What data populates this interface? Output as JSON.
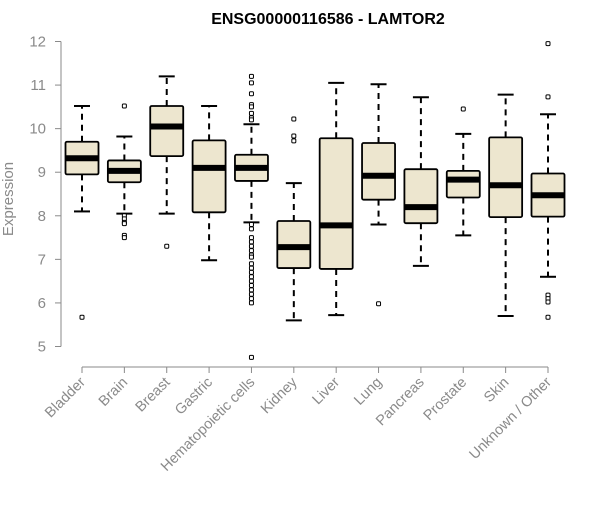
{
  "chart_data": {
    "type": "boxplot",
    "title": "ENSG00000116586 - LAMTOR2",
    "ylabel": "Expression",
    "xlabel": "",
    "ylim": [
      4.7,
      12.1
    ],
    "yticks": [
      5,
      6,
      7,
      8,
      9,
      10,
      11,
      12
    ],
    "grid": false,
    "legend": "none",
    "categories": [
      "Bladder",
      "Brain",
      "Breast",
      "Gastric",
      "Hematopoietic cells",
      "Kidney",
      "Liver",
      "Lung",
      "Pancreas",
      "Prostate",
      "Skin",
      "Unknown / Other"
    ],
    "boxes": [
      {
        "name": "Bladder",
        "whisker_low": 8.1,
        "q1": 8.95,
        "median": 9.32,
        "q3": 9.7,
        "whisker_high": 10.52,
        "outliers": [
          5.67
        ]
      },
      {
        "name": "Brain",
        "whisker_low": 8.05,
        "q1": 8.77,
        "median": 9.03,
        "q3": 9.27,
        "whisker_high": 9.82,
        "outliers": [
          10.52,
          8.0,
          7.93,
          7.85,
          7.82,
          7.55,
          7.5
        ]
      },
      {
        "name": "Breast",
        "whisker_low": 8.05,
        "q1": 9.37,
        "median": 10.05,
        "q3": 10.52,
        "whisker_high": 11.2,
        "outliers": [
          7.3
        ]
      },
      {
        "name": "Gastric",
        "whisker_low": 6.98,
        "q1": 8.08,
        "median": 9.1,
        "q3": 9.73,
        "whisker_high": 10.52,
        "outliers": []
      },
      {
        "name": "Hematopoietic cells",
        "whisker_low": 7.85,
        "q1": 8.8,
        "median": 9.1,
        "q3": 9.4,
        "whisker_high": 10.1,
        "outliers": [
          11.2,
          11.05,
          10.8,
          10.55,
          10.5,
          10.35,
          10.25,
          10.2,
          7.8,
          7.7,
          7.5,
          7.4,
          7.3,
          7.2,
          7.1,
          7.05,
          6.9,
          6.8,
          6.7,
          6.6,
          6.5,
          6.4,
          6.3,
          6.2,
          6.1,
          6.0,
          4.75
        ]
      },
      {
        "name": "Kidney",
        "whisker_low": 5.6,
        "q1": 6.8,
        "median": 7.28,
        "q3": 7.88,
        "whisker_high": 8.75,
        "outliers": [
          10.22,
          9.83,
          9.72
        ]
      },
      {
        "name": "Liver",
        "whisker_low": 5.72,
        "q1": 6.78,
        "median": 7.78,
        "q3": 9.78,
        "whisker_high": 11.05,
        "outliers": []
      },
      {
        "name": "Lung",
        "whisker_low": 7.8,
        "q1": 8.37,
        "median": 8.92,
        "q3": 9.67,
        "whisker_high": 11.02,
        "outliers": [
          5.98
        ]
      },
      {
        "name": "Pancreas",
        "whisker_low": 6.85,
        "q1": 7.83,
        "median": 8.2,
        "q3": 9.07,
        "whisker_high": 10.72,
        "outliers": []
      },
      {
        "name": "Prostate",
        "whisker_low": 7.55,
        "q1": 8.42,
        "median": 8.83,
        "q3": 9.03,
        "whisker_high": 9.88,
        "outliers": [
          10.45
        ]
      },
      {
        "name": "Skin",
        "whisker_low": 5.7,
        "q1": 7.97,
        "median": 8.7,
        "q3": 9.8,
        "whisker_high": 10.78,
        "outliers": []
      },
      {
        "name": "Unknown / Other",
        "whisker_low": 6.6,
        "q1": 7.98,
        "median": 8.47,
        "q3": 8.97,
        "whisker_high": 10.33,
        "outliers": [
          11.95,
          10.73,
          6.18,
          6.1,
          6.02,
          5.67
        ]
      }
    ],
    "colors": {
      "box_fill": "#ede6cf",
      "stroke": "#000000",
      "axis": "#8a8a8a",
      "text": "#8a8a8a",
      "title": "#000000"
    }
  }
}
